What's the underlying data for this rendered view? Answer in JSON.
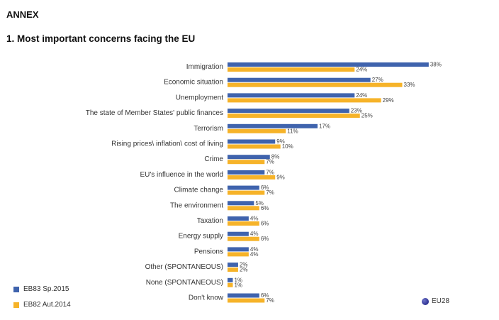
{
  "annex_label": "ANNEX",
  "section_title": "1. Most important concerns facing the EU",
  "colors": {
    "series1": "#3F63AD",
    "series2": "#F6B329"
  },
  "eu_badge": {
    "icon": "eu-globe-icon",
    "label": "EU28"
  },
  "chart_data": {
    "type": "bar",
    "orientation": "horizontal",
    "title": "1. Most important concerns facing the EU",
    "categories": [
      "Immigration",
      "Economic situation",
      "Unemployment",
      "The state of Member States' public finances",
      "Terrorism",
      "Rising prices\\ inflation\\ cost of living",
      "Crime",
      "EU's influence in the world",
      "Climate change",
      "The environment",
      "Taxation",
      "Energy supply",
      "Pensions",
      "Other (SPONTANEOUS)",
      "None (SPONTANEOUS)",
      "Don't know"
    ],
    "series": [
      {
        "name": "EB83 Sp.2015",
        "values": [
          38,
          27,
          24,
          23,
          17,
          9,
          8,
          7,
          6,
          5,
          4,
          4,
          4,
          2,
          1,
          6
        ]
      },
      {
        "name": "EB82 Aut.2014",
        "values": [
          24,
          33,
          29,
          25,
          11,
          10,
          7,
          9,
          7,
          6,
          6,
          6,
          4,
          2,
          1,
          7
        ]
      }
    ],
    "value_suffix": "%",
    "xlim": [
      0,
      38
    ],
    "grid": false,
    "legend_position": "bottom-left"
  }
}
